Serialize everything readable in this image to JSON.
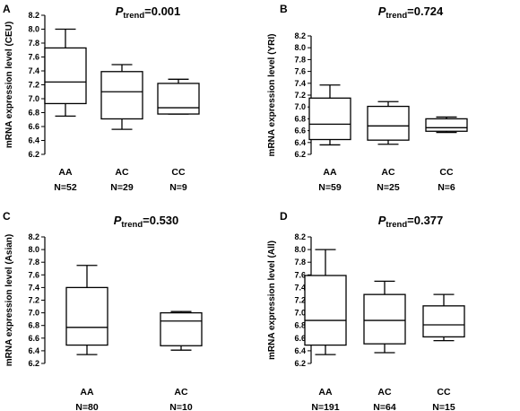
{
  "chart_data": [
    {
      "type": "boxplot",
      "panel": "A",
      "title": {
        "p": "P",
        "sub": "trend",
        "value": "=0.001"
      },
      "ylabel": "mRNA expression level (CEU)",
      "ylim": [
        6.2,
        8.2
      ],
      "yticks": [
        "6.2",
        "6.4",
        "6.6",
        "6.8",
        "7.0",
        "7.2",
        "7.4",
        "7.6",
        "7.8",
        "8.0",
        "8.2"
      ],
      "categories": [
        {
          "label": "AA",
          "n": "N=52",
          "min": 6.75,
          "q1": 6.93,
          "median": 7.24,
          "q3": 7.73,
          "max": 8.0
        },
        {
          "label": "AC",
          "n": "N=29",
          "min": 6.56,
          "q1": 6.71,
          "median": 7.1,
          "q3": 7.39,
          "max": 7.49
        },
        {
          "label": "CC",
          "n": "N=9",
          "min": 6.78,
          "q1": 6.78,
          "median": 6.87,
          "q3": 7.22,
          "max": 7.28
        }
      ]
    },
    {
      "type": "boxplot",
      "panel": "B",
      "title": {
        "p": "P",
        "sub": "trend",
        "value": "=0.724"
      },
      "ylabel": "mRNA expression level (YRI)",
      "ylim": [
        6.2,
        8.2
      ],
      "yticks": [
        "6.2",
        "6.4",
        "6.6",
        "6.8",
        "7.0",
        "7.2",
        "7.4",
        "7.6",
        "7.8",
        "8.0",
        "8.2"
      ],
      "categories": [
        {
          "label": "AA",
          "n": "N=59",
          "min": 6.36,
          "q1": 6.45,
          "median": 6.71,
          "q3": 7.15,
          "max": 7.37
        },
        {
          "label": "AC",
          "n": "N=25",
          "min": 6.37,
          "q1": 6.44,
          "median": 6.68,
          "q3": 7.01,
          "max": 7.09
        },
        {
          "label": "CC",
          "n": "N=6",
          "min": 6.57,
          "q1": 6.59,
          "median": 6.65,
          "q3": 6.8,
          "max": 6.83
        }
      ]
    },
    {
      "type": "boxplot",
      "panel": "C",
      "title": {
        "p": "P",
        "sub": "trend",
        "value": "=0.530"
      },
      "ylabel": "mRNA expression level (Asian)",
      "ylim": [
        6.2,
        8.2
      ],
      "yticks": [
        "6.2",
        "6.4",
        "6.6",
        "6.8",
        "7.0",
        "7.2",
        "7.4",
        "7.6",
        "7.8",
        "8.0",
        "8.2"
      ],
      "categories": [
        {
          "label": "AA",
          "n": "N=80",
          "min": 6.34,
          "q1": 6.49,
          "median": 6.77,
          "q3": 7.4,
          "max": 7.75
        },
        {
          "label": "AC",
          "n": "N=10",
          "min": 6.41,
          "q1": 6.48,
          "median": 6.87,
          "q3": 7.0,
          "max": 7.02
        }
      ]
    },
    {
      "type": "boxplot",
      "panel": "D",
      "title": {
        "p": "P",
        "sub": "trend",
        "value": "=0.377"
      },
      "ylabel": "mRNA expression level (All)",
      "ylim": [
        6.2,
        8.2
      ],
      "yticks": [
        "6.2",
        "6.4",
        "6.6",
        "6.8",
        "7.0",
        "7.2",
        "7.4",
        "7.6",
        "7.8",
        "8.0",
        "8.2"
      ],
      "categories": [
        {
          "label": "AA",
          "n": "N=191",
          "min": 6.34,
          "q1": 6.49,
          "median": 6.88,
          "q3": 7.59,
          "max": 8.0
        },
        {
          "label": "AC",
          "n": "N=64",
          "min": 6.37,
          "q1": 6.51,
          "median": 6.88,
          "q3": 7.29,
          "max": 7.5
        },
        {
          "label": "CC",
          "n": "N=15",
          "min": 6.56,
          "q1": 6.62,
          "median": 6.81,
          "q3": 7.11,
          "max": 7.29
        }
      ]
    }
  ]
}
